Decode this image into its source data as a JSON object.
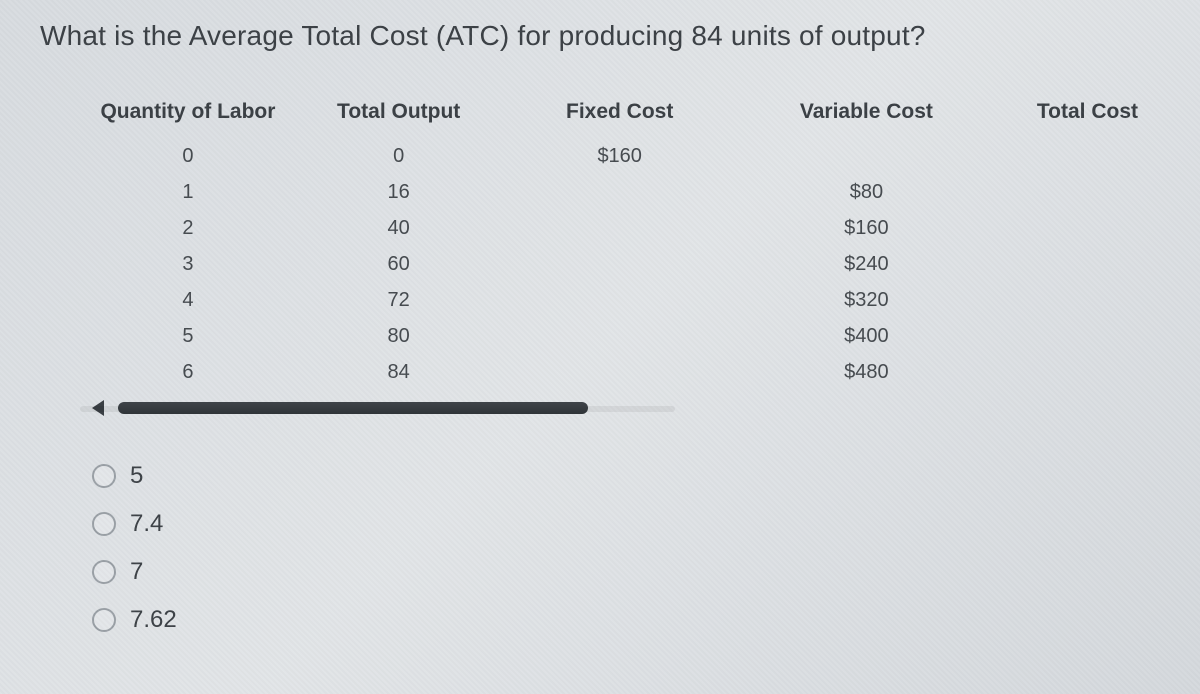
{
  "question": "What is the Average Total Cost (ATC) for producing 84 units of output?",
  "table": {
    "columns": [
      "Quantity of Labor",
      "Total Output",
      "Fixed Cost",
      "Variable Cost",
      "Total Cost"
    ],
    "rows": [
      {
        "labor": "0",
        "output": "0",
        "fixed": "$160",
        "variable": "",
        "total": ""
      },
      {
        "labor": "1",
        "output": "16",
        "fixed": "",
        "variable": "$80",
        "total": ""
      },
      {
        "labor": "2",
        "output": "40",
        "fixed": "",
        "variable": "$160",
        "total": ""
      },
      {
        "labor": "3",
        "output": "60",
        "fixed": "",
        "variable": "$240",
        "total": ""
      },
      {
        "labor": "4",
        "output": "72",
        "fixed": "",
        "variable": "$320",
        "total": ""
      },
      {
        "labor": "5",
        "output": "80",
        "fixed": "",
        "variable": "$400",
        "total": ""
      },
      {
        "labor": "6",
        "output": "84",
        "fixed": "",
        "variable": "$480",
        "total": ""
      }
    ]
  },
  "options": [
    "5",
    "7.4",
    "7",
    "7.62"
  ],
  "colors": {
    "text": "#3a3f44",
    "background": "#dde0e4",
    "radio_border": "#9aa0a6",
    "scrollbar_thumb": "#34393e"
  }
}
